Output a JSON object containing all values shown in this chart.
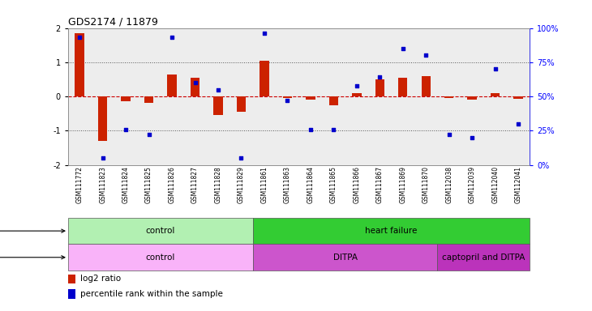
{
  "title": "GDS2174 / 11879",
  "samples": [
    "GSM111772",
    "GSM111823",
    "GSM111824",
    "GSM111825",
    "GSM111826",
    "GSM111827",
    "GSM111828",
    "GSM111829",
    "GSM111861",
    "GSM111863",
    "GSM111864",
    "GSM111865",
    "GSM111866",
    "GSM111867",
    "GSM111869",
    "GSM111870",
    "GSM112038",
    "GSM112039",
    "GSM112040",
    "GSM112041"
  ],
  "log2_ratio": [
    1.85,
    -1.3,
    -0.15,
    -0.2,
    0.65,
    0.55,
    -0.55,
    -0.45,
    1.05,
    -0.05,
    -0.1,
    -0.25,
    0.1,
    0.5,
    0.55,
    0.6,
    -0.05,
    -0.1,
    0.1,
    -0.08
  ],
  "percentile": [
    93,
    5,
    26,
    22,
    93,
    60,
    55,
    5,
    96,
    47,
    26,
    26,
    58,
    64,
    85,
    80,
    22,
    20,
    70,
    30
  ],
  "disease_state": [
    {
      "label": "control",
      "start": 0,
      "end": 8,
      "color": "#b2f0b2"
    },
    {
      "label": "heart failure",
      "start": 8,
      "end": 20,
      "color": "#33cc33"
    }
  ],
  "agent": [
    {
      "label": "control",
      "start": 0,
      "end": 8,
      "color": "#f9b3f9"
    },
    {
      "label": "DITPA",
      "start": 8,
      "end": 16,
      "color": "#cc55cc"
    },
    {
      "label": "captopril and DITPA",
      "start": 16,
      "end": 20,
      "color": "#bb33bb"
    }
  ],
  "bar_color": "#cc2200",
  "dot_color": "#0000cc",
  "ylim_left": [
    -2,
    2
  ],
  "ylim_right": [
    0,
    100
  ],
  "yticks_left": [
    -2,
    -1,
    0,
    1,
    2
  ],
  "yticks_right": [
    0,
    25,
    50,
    75,
    100
  ],
  "yticklabels_right": [
    "0%",
    "25%",
    "50%",
    "75%",
    "100%"
  ],
  "legend_items": [
    {
      "label": "log2 ratio",
      "color": "#cc2200"
    },
    {
      "label": "percentile rank within the sample",
      "color": "#0000cc"
    }
  ]
}
